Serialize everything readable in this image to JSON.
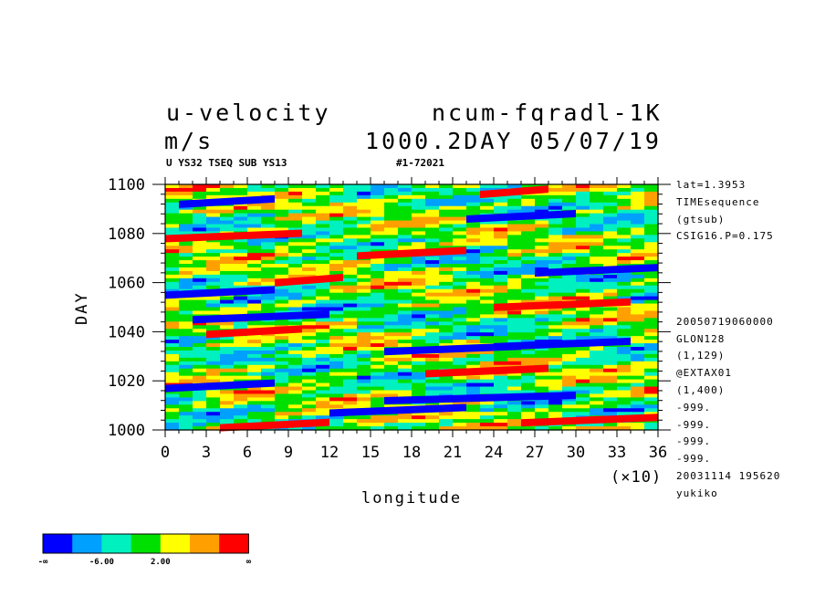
{
  "header": {
    "variable": "u-velocity",
    "experiment": "ncum-fqradl-1K",
    "units": "m/s",
    "time_stamp": "1000.2DAY 05/07/19",
    "subtitle": "U YS32 TSEQ SUB YS13",
    "run_id": "#1-72021"
  },
  "info_top": [
    "lat=1.3953",
    "TIMEsequence",
    "(gtsub)",
    "CSIG16.P=0.175"
  ],
  "info_bottom": [
    "20050719060000",
    "GLON128",
    "(1,129)",
    "@EXTAX01",
    "(1,400)",
    "-999.",
    "-999.",
    "-999.",
    "-999.",
    "20031114 195620",
    "yukiko"
  ],
  "chart_data": {
    "type": "heatmap",
    "title": "u-velocity",
    "xlabel": "longitude",
    "ylabel": "DAY",
    "x_multiplier": "(×10)",
    "xlim": [
      0,
      36
    ],
    "ylim": [
      1000,
      1100
    ],
    "x_ticks": [
      "0",
      "3",
      "6",
      "9",
      "12",
      "15",
      "18",
      "21",
      "24",
      "27",
      "30",
      "33",
      "36"
    ],
    "y_ticks": [
      "1000",
      "1020",
      "1040",
      "1060",
      "1080",
      "1100"
    ],
    "color_levels": [
      "#0000ff",
      "#00a0ff",
      "#00f0c0",
      "#00e000",
      "#ffff00",
      "#ffa000",
      "#ff0000"
    ],
    "colorbar_labels": [
      "-∞",
      "-6.00",
      "2.00",
      "∞"
    ],
    "bands": [
      {
        "day": 1002,
        "lon0": 4,
        "lon1": 12,
        "value": 6
      },
      {
        "day": 1004,
        "lon0": 26,
        "lon1": 36,
        "value": 6
      },
      {
        "day": 1008,
        "lon0": 12,
        "lon1": 22,
        "value": 0
      },
      {
        "day": 1013,
        "lon0": 16,
        "lon1": 30,
        "value": 0
      },
      {
        "day": 1018,
        "lon0": 0,
        "lon1": 8,
        "value": 0
      },
      {
        "day": 1024,
        "lon0": 19,
        "lon1": 28,
        "value": 6
      },
      {
        "day": 1033,
        "lon0": 16,
        "lon1": 26,
        "value": 0
      },
      {
        "day": 1035,
        "lon0": 24,
        "lon1": 34,
        "value": 0
      },
      {
        "day": 1040,
        "lon0": 3,
        "lon1": 10,
        "value": 6
      },
      {
        "day": 1046,
        "lon0": 2,
        "lon1": 12,
        "value": 0
      },
      {
        "day": 1051,
        "lon0": 24,
        "lon1": 34,
        "value": 6
      },
      {
        "day": 1056,
        "lon0": 0,
        "lon1": 8,
        "value": 0
      },
      {
        "day": 1061,
        "lon0": 8,
        "lon1": 13,
        "value": 6
      },
      {
        "day": 1065,
        "lon0": 27,
        "lon1": 36,
        "value": 0
      },
      {
        "day": 1072,
        "lon0": 14,
        "lon1": 22,
        "value": 6
      },
      {
        "day": 1079,
        "lon0": 0,
        "lon1": 10,
        "value": 6
      },
      {
        "day": 1087,
        "lon0": 22,
        "lon1": 30,
        "value": 0
      },
      {
        "day": 1093,
        "lon0": 1,
        "lon1": 8,
        "value": 0
      },
      {
        "day": 1097,
        "lon0": 23,
        "lon1": 28,
        "value": 6
      }
    ]
  }
}
